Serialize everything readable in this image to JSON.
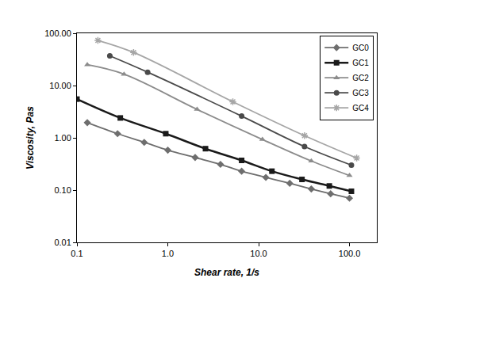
{
  "chart_data": {
    "type": "line",
    "x_label": "Shear rate, 1/s",
    "y_label": "Viscosity, Pas",
    "log": true,
    "grid": false,
    "legend": "top-right",
    "line_style": "solid",
    "xlim": [
      0.1,
      200
    ],
    "xticks": [
      0.1,
      {
        "value": 1,
        "label": "1.0"
      },
      {
        "value": 10,
        "label": "10.0"
      },
      {
        "value": 100,
        "label": "100.0"
      }
    ],
    "ylim": [
      0.01,
      100
    ],
    "yticks": [
      0.01,
      {
        "value": 0.1,
        "label": "0.10"
      },
      {
        "value": 1,
        "label": "1.00"
      },
      {
        "value": 10,
        "label": "10.00"
      },
      {
        "value": 100,
        "label": "100.00"
      }
    ],
    "series": [
      {
        "name": "GC0",
        "color": "#6e6e6e",
        "marker": "diamond",
        "x": [
          0.13,
          0.28,
          0.55,
          1.0,
          2.0,
          3.8,
          6.5,
          12,
          22,
          38,
          62,
          100
        ],
        "values": [
          1.95,
          1.2,
          0.82,
          0.58,
          0.42,
          0.31,
          0.23,
          0.175,
          0.135,
          0.105,
          0.085,
          0.07
        ]
      },
      {
        "name": "GC1",
        "color": "#1a1a1a",
        "marker": "square",
        "x": [
          0.1,
          0.3,
          0.95,
          2.6,
          6.5,
          14,
          30,
          60,
          105
        ],
        "values": [
          5.5,
          2.4,
          1.2,
          0.62,
          0.37,
          0.23,
          0.16,
          0.12,
          0.095
        ]
      },
      {
        "name": "GC2",
        "color": "#8c8c8c",
        "marker": "triangle",
        "x": [
          0.13,
          0.33,
          2.1,
          11,
          38,
          100
        ],
        "values": [
          25,
          16.5,
          3.5,
          0.93,
          0.36,
          0.19
        ]
      },
      {
        "name": "GC3",
        "color": "#4a4a4a",
        "marker": "circle",
        "x": [
          0.23,
          0.6,
          6.5,
          32,
          105
        ],
        "values": [
          37,
          18,
          2.6,
          0.68,
          0.3
        ]
      },
      {
        "name": "GC4",
        "color": "#a6a6a6",
        "marker": "asterisk",
        "x": [
          0.17,
          0.42,
          5.2,
          32,
          120
        ],
        "values": [
          73,
          43,
          4.9,
          1.1,
          0.41
        ]
      }
    ]
  }
}
